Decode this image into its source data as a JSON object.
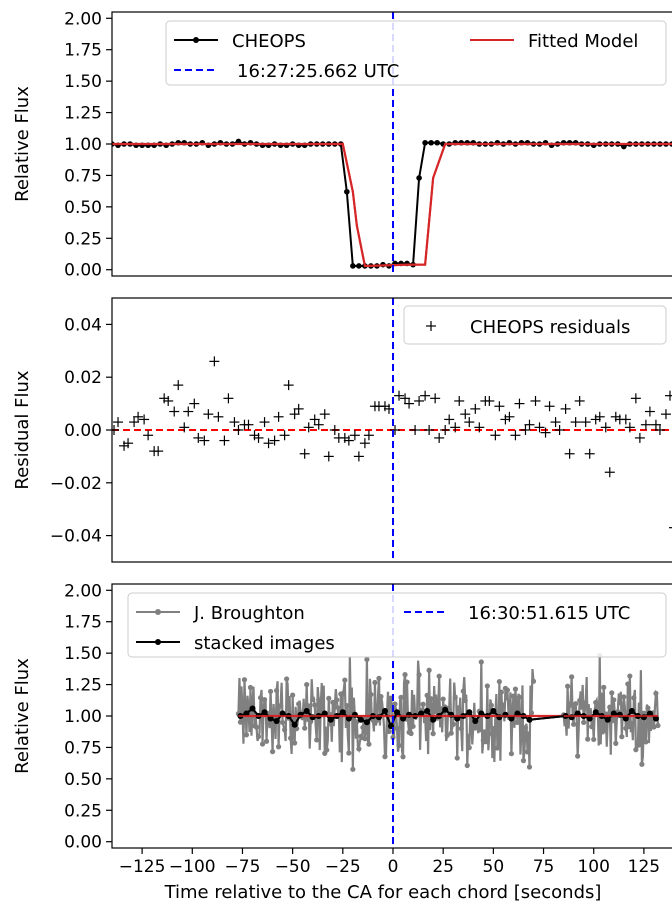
{
  "chart_data": [
    {
      "type": "line",
      "panel": "top",
      "ylabel": "Relative Flux",
      "xlabel": "",
      "ylim": [
        -0.05,
        2.05
      ],
      "xlim": [
        -140,
        140
      ],
      "yticks": [
        0.0,
        0.25,
        0.5,
        0.75,
        1.0,
        1.25,
        1.5,
        1.75,
        2.0
      ],
      "ytick_labels": [
        "0.00",
        "0.25",
        "0.50",
        "0.75",
        "1.00",
        "1.25",
        "1.50",
        "1.75",
        "2.00"
      ],
      "legend": [
        "CHEOPS",
        "Fitted Model",
        "16:27:25.662 UTC"
      ],
      "legend_position": "top",
      "vline": {
        "x": 0,
        "label": "16:27:25.662 UTC",
        "color": "#0000ff"
      },
      "series": [
        {
          "name": "CHEOPS",
          "color": "#000000",
          "x": [
            -140,
            -137,
            -134,
            -131,
            -128,
            -125,
            -122,
            -119,
            -116,
            -113,
            -110,
            -107,
            -104,
            -101,
            -98,
            -95,
            -92,
            -89,
            -86,
            -83,
            -80,
            -77,
            -74,
            -71,
            -68,
            -65,
            -62,
            -59,
            -56,
            -53,
            -50,
            -47,
            -44,
            -41,
            -38,
            -35,
            -32,
            -29,
            -26,
            -23,
            -20,
            -17,
            -14,
            -11,
            -8,
            -5,
            -2,
            1,
            4,
            7,
            10,
            13,
            16,
            19,
            22,
            25,
            28,
            31,
            34,
            37,
            40,
            43,
            46,
            49,
            52,
            55,
            58,
            61,
            64,
            67,
            70,
            73,
            76,
            79,
            82,
            85,
            88,
            91,
            94,
            97,
            100,
            103,
            106,
            109,
            112,
            115,
            118,
            121,
            124,
            127,
            130,
            133,
            136,
            139
          ],
          "y": [
            1.0,
            0.99,
            1.0,
            1.0,
            0.99,
            0.99,
            0.99,
            0.99,
            1.0,
            0.99,
            1.0,
            1.01,
            1.01,
            1.0,
            1.0,
            1.01,
            0.99,
            1.0,
            1.01,
            1.0,
            1.0,
            1.02,
            1.0,
            1.01,
            1.0,
            0.99,
            0.99,
            1.0,
            0.99,
            0.99,
            1.0,
            0.99,
            0.99,
            1.0,
            1.0,
            1.0,
            1.0,
            1.0,
            1.0,
            0.62,
            0.03,
            0.03,
            0.03,
            0.03,
            0.03,
            0.04,
            0.03,
            0.05,
            0.05,
            0.05,
            0.04,
            0.73,
            1.01,
            1.01,
            1.01,
            1.0,
            1.0,
            1.01,
            1.01,
            1.01,
            1.01,
            1.0,
            1.0,
            1.0,
            1.01,
            1.0,
            1.01,
            1.0,
            1.01,
            1.01,
            1.0,
            1.0,
            1.01,
            0.99,
            1.0,
            1.01,
            1.01,
            1.01,
            1.0,
            1.0,
            0.99,
            1.0,
            1.0,
            1.0,
            1.0,
            0.98,
            1.0,
            1.0,
            1.0,
            1.0,
            1.0,
            1.0,
            1.0,
            1.0
          ]
        },
        {
          "name": "Fitted Model",
          "color": "#d62728",
          "x": [
            -140,
            -25,
            -20,
            -18,
            -14,
            8,
            16,
            20,
            26,
            140
          ],
          "y": [
            1.0,
            1.0,
            0.62,
            0.35,
            0.03,
            0.04,
            0.04,
            0.73,
            1.0,
            1.0
          ]
        }
      ]
    },
    {
      "type": "scatter",
      "panel": "middle",
      "ylabel": "Residual Flux",
      "xlabel": "",
      "ylim": [
        -0.05,
        0.05
      ],
      "xlim": [
        -140,
        140
      ],
      "yticks": [
        -0.04,
        -0.02,
        0.0,
        0.02,
        0.04
      ],
      "ytick_labels": [
        "−0.04",
        "−0.02",
        "0.00",
        "0.02",
        "0.04"
      ],
      "legend": [
        "CHEOPS residuals"
      ],
      "legend_position": "top-right",
      "hline": {
        "y": 0,
        "color": "#ff0000"
      },
      "vline": {
        "x": 0,
        "color": "#0000ff"
      },
      "series": [
        {
          "name": "CHEOPS residuals",
          "marker": "+",
          "color": "#000000",
          "x": [
            -139,
            -137,
            -134,
            -132,
            -129,
            -127,
            -124,
            -122,
            -119,
            -117,
            -114,
            -112,
            -109,
            -107,
            -104,
            -102,
            -99,
            -97,
            -94,
            -92,
            -89,
            -87,
            -84,
            -82,
            -79,
            -77,
            -74,
            -72,
            -69,
            -67,
            -64,
            -62,
            -59,
            -57,
            -54,
            -52,
            -49,
            -47,
            -44,
            -42,
            -39,
            -37,
            -34,
            -32,
            -29,
            -27,
            -24,
            -22,
            -19,
            -17,
            -14,
            -12,
            -9,
            -7,
            -4,
            -2,
            1,
            3,
            6,
            8,
            11,
            13,
            16,
            18,
            21,
            23,
            26,
            28,
            31,
            33,
            36,
            38,
            41,
            43,
            46,
            48,
            51,
            53,
            56,
            58,
            61,
            63,
            66,
            68,
            71,
            73,
            76,
            78,
            81,
            83,
            86,
            88,
            91,
            93,
            96,
            98,
            101,
            103,
            106,
            108,
            111,
            113,
            116,
            118,
            121,
            123,
            126,
            128,
            131,
            133,
            136,
            138,
            140
          ],
          "y": [
            0.0,
            0.003,
            -0.006,
            -0.005,
            0.003,
            0.005,
            0.004,
            -0.002,
            -0.008,
            -0.008,
            0.012,
            0.011,
            0.007,
            0.017,
            0.001,
            0.007,
            0.01,
            -0.003,
            -0.004,
            0.006,
            0.026,
            0.005,
            -0.004,
            0.012,
            0.003,
            0.0,
            0.002,
            0.002,
            -0.002,
            -0.003,
            0.003,
            -0.005,
            -0.004,
            0.005,
            -0.002,
            0.017,
            0.006,
            0.008,
            -0.009,
            0.001,
            0.004,
            0.002,
            0.006,
            -0.01,
            0.0,
            -0.003,
            -0.003,
            -0.004,
            -0.002,
            -0.01,
            -0.005,
            -0.002,
            0.009,
            0.009,
            0.009,
            0.008,
            0.0,
            0.013,
            0.012,
            0.01,
            0.0,
            0.011,
            0.013,
            0.0,
            0.012,
            -0.003,
            0.0,
            0.004,
            0.001,
            0.011,
            0.006,
            0.003,
            0.008,
            0.001,
            0.011,
            0.011,
            -0.002,
            0.009,
            0.004,
            0.005,
            -0.002,
            0.01,
            0.0,
            0.002,
            0.011,
            0.001,
            -0.001,
            0.009,
            0.003,
            0.0,
            0.008,
            -0.009,
            0.003,
            0.011,
            0.003,
            -0.009,
            0.004,
            0.005,
            0.001,
            -0.016,
            0.005,
            0.004,
            0.004,
            0.001,
            0.012,
            -0.003,
            0.002,
            0.007,
            0.002,
            0.0,
            0.006,
            0.013,
            -0.037
          ]
        }
      ]
    },
    {
      "type": "line",
      "panel": "bottom",
      "ylabel": "Relative Flux",
      "xlabel": "Time relative to the CA for each chord [seconds]",
      "ylim": [
        -0.05,
        2.05
      ],
      "xlim": [
        -140,
        140
      ],
      "xticks": [
        -125,
        -100,
        -75,
        -50,
        -25,
        0,
        25,
        50,
        75,
        100,
        125
      ],
      "xtick_labels": [
        "−125",
        "−100",
        "−75",
        "−50",
        "−25",
        "0",
        "25",
        "50",
        "75",
        "100",
        "125"
      ],
      "yticks": [
        0.0,
        0.25,
        0.5,
        0.75,
        1.0,
        1.25,
        1.5,
        1.75,
        2.0
      ],
      "ytick_labels": [
        "0.00",
        "0.25",
        "0.50",
        "0.75",
        "1.00",
        "1.25",
        "1.50",
        "1.75",
        "2.00"
      ],
      "legend": [
        "J. Broughton",
        "stacked images",
        "16:30:51.615 UTC"
      ],
      "legend_position": "top",
      "vline": {
        "x": 0,
        "label": "16:30:51.615 UTC",
        "color": "#0000ff"
      },
      "series": [
        {
          "name": "J. Broughton",
          "color": "#808080",
          "segments": [
            [
              -77,
              70
            ],
            [
              85,
              132
            ]
          ],
          "mean": 1.0,
          "scatter_range": [
            0.55,
            1.55
          ]
        },
        {
          "name": "stacked images",
          "color": "#000000",
          "x": [
            -76,
            -73,
            -70,
            -67,
            -64,
            -61,
            -58,
            -55,
            -52,
            -49,
            -46,
            -43,
            -40,
            -37,
            -34,
            -31,
            -28,
            -25,
            -22,
            -19,
            -16,
            -13,
            -10,
            -7,
            -4,
            -1,
            2,
            5,
            8,
            11,
            14,
            17,
            20,
            23,
            26,
            29,
            32,
            35,
            38,
            41,
            44,
            47,
            50,
            53,
            56,
            59,
            62,
            65,
            68,
            86,
            89,
            92,
            95,
            98,
            101,
            104,
            107,
            110,
            113,
            116,
            119,
            122,
            125,
            128,
            131
          ],
          "y": [
            1.0,
            1.02,
            1.06,
            1.0,
            1.03,
            0.98,
            0.96,
            1.02,
            1.0,
            0.93,
            1.01,
            1.04,
            0.99,
            1.0,
            1.02,
            0.97,
            1.0,
            1.03,
            0.98,
            1.01,
            0.97,
            0.95,
            1.0,
            0.99,
            1.04,
            0.92,
            1.03,
            0.98,
            1.01,
            1.0,
            1.02,
            1.04,
            0.97,
            1.0,
            1.05,
            1.01,
            0.98,
            1.0,
            1.03,
            0.96,
            1.02,
            1.0,
            1.04,
            0.99,
            1.01,
            0.98,
            1.02,
            1.0,
            0.97,
            1.0,
            0.99,
            1.02,
            1.0,
            0.98,
            1.03,
            1.0,
            0.97,
            1.02,
            1.01,
            0.98,
            1.04,
            1.0,
            0.99,
            1.02,
            0.98
          ]
        },
        {
          "name": "model",
          "color": "#d62728",
          "x": [
            -77,
            132
          ],
          "y": [
            1.0,
            1.0
          ]
        }
      ]
    }
  ]
}
